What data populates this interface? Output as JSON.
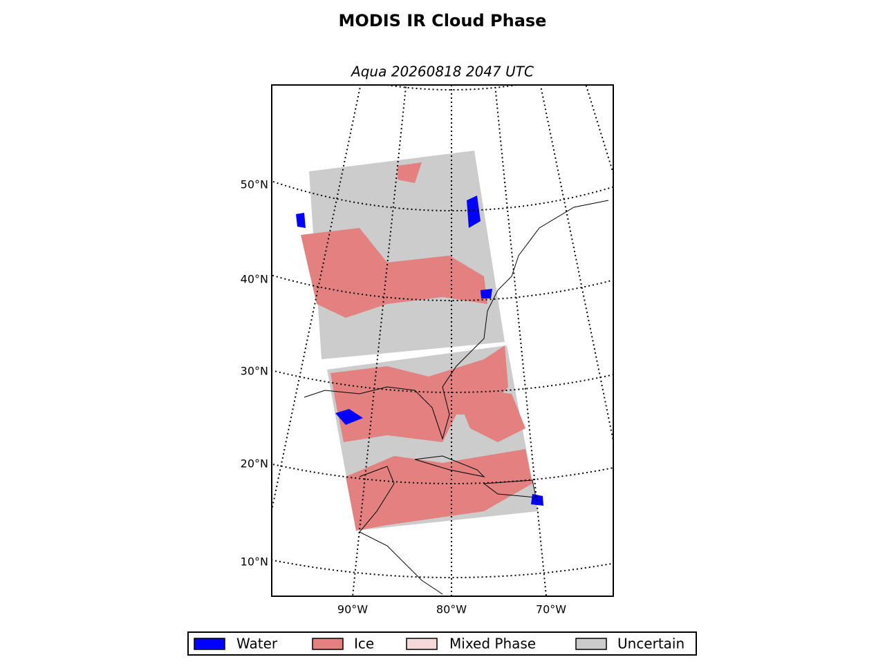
{
  "title": "MODIS IR Cloud Phase",
  "subtitle": "Aqua 20260818 2047 UTC",
  "latitude_labels": [
    "50°N",
    "40°N",
    "30°N",
    "20°N",
    "10°N"
  ],
  "longitude_labels": [
    "90°W",
    "80°W",
    "70°W"
  ],
  "legend": [
    {
      "label": "Water",
      "color": "#0000ff"
    },
    {
      "label": "Ice",
      "color": "#e38080"
    },
    {
      "label": "Mixed Phase",
      "color": "#f6d8d8"
    },
    {
      "label": "Uncertain",
      "color": "#cccccc"
    }
  ]
}
